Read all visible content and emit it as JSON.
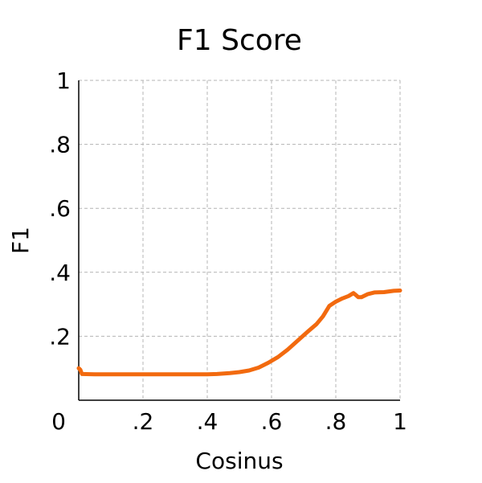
{
  "chart_data": {
    "type": "line",
    "title": "F1 Score",
    "xlabel": "Cosinus",
    "ylabel": "F1",
    "xlim": [
      0,
      1
    ],
    "ylim": [
      0,
      1
    ],
    "x_ticks": [
      {
        "value": 0,
        "label": "0"
      },
      {
        "value": 0.2,
        "label": ".2"
      },
      {
        "value": 0.4,
        "label": ".4"
      },
      {
        "value": 0.6,
        "label": ".6"
      },
      {
        "value": 0.8,
        "label": ".8"
      },
      {
        "value": 1,
        "label": "1"
      }
    ],
    "y_ticks": [
      {
        "value": 0.2,
        "label": ".2"
      },
      {
        "value": 0.4,
        "label": ".4"
      },
      {
        "value": 0.6,
        "label": ".6"
      },
      {
        "value": 0.8,
        "label": ".8"
      },
      {
        "value": 1,
        "label": "1"
      }
    ],
    "grid": true,
    "line_color": "#f26a0f",
    "series": [
      {
        "x": [
          0.0,
          0.005,
          0.01,
          0.05,
          0.1,
          0.2,
          0.3,
          0.4,
          0.43,
          0.47,
          0.5,
          0.53,
          0.56,
          0.59,
          0.62,
          0.65,
          0.68,
          0.71,
          0.74,
          0.76,
          0.78,
          0.8,
          0.82,
          0.84,
          0.855,
          0.86,
          0.87,
          0.88,
          0.9,
          0.92,
          0.95,
          0.98,
          1.0
        ],
        "y": [
          0.1,
          0.095,
          0.082,
          0.081,
          0.081,
          0.081,
          0.081,
          0.081,
          0.082,
          0.085,
          0.088,
          0.093,
          0.102,
          0.117,
          0.135,
          0.158,
          0.185,
          0.212,
          0.238,
          0.262,
          0.295,
          0.308,
          0.318,
          0.326,
          0.335,
          0.331,
          0.322,
          0.322,
          0.332,
          0.337,
          0.338,
          0.342,
          0.343
        ]
      }
    ]
  }
}
